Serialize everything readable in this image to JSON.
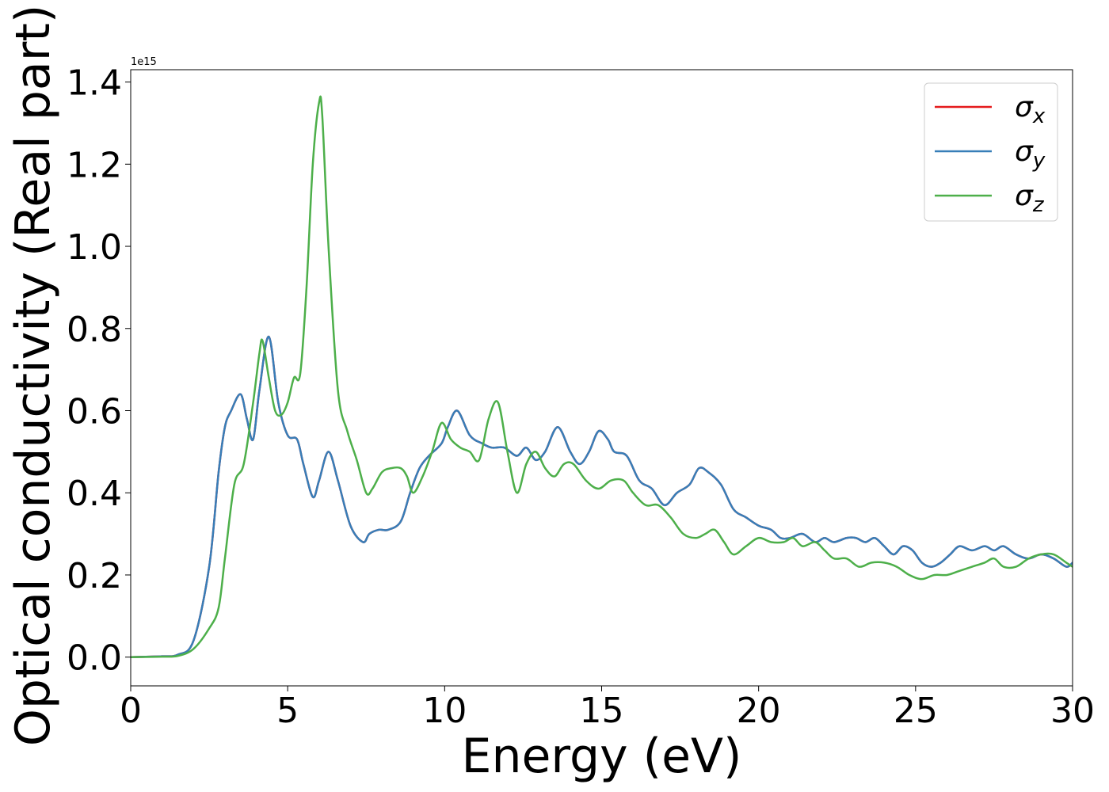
{
  "chart_data": {
    "type": "line",
    "xlabel": "Energy (eV)",
    "ylabel": "Optical conductivity (Real part)",
    "y_offset_label": "1e15",
    "y_scale": 1000000000000000.0,
    "xlim": [
      0,
      30
    ],
    "ylim": [
      -0.07,
      1.43
    ],
    "x_ticks": [
      0,
      5,
      10,
      15,
      20,
      25,
      30
    ],
    "x_tick_labels": [
      "0",
      "5",
      "10",
      "15",
      "20",
      "25",
      "30"
    ],
    "y_ticks": [
      0.0,
      0.2,
      0.4,
      0.6,
      0.8,
      1.0,
      1.2,
      1.4
    ],
    "y_tick_labels": [
      "0.0",
      "0.2",
      "0.4",
      "0.6",
      "0.8",
      "1.0",
      "1.2",
      "1.4"
    ],
    "grid": false,
    "legend_position": "top-right",
    "series": [
      {
        "name": "σx",
        "symbol": "σ",
        "subscript": "x",
        "color": "#e41a1c",
        "x": [
          0,
          1,
          1.5,
          2,
          2.5,
          2.8,
          3,
          3.2,
          3.5,
          3.7,
          3.9,
          4.1,
          4.4,
          4.7,
          5,
          5.3,
          5.5,
          5.8,
          6,
          6.3,
          6.6,
          7,
          7.4,
          7.6,
          7.9,
          8.2,
          8.6,
          8.9,
          9.2,
          9.5,
          9.9,
          10.1,
          10.4,
          10.8,
          11.2,
          11.5,
          11.9,
          12.3,
          12.6,
          12.9,
          13.2,
          13.6,
          14,
          14.3,
          14.6,
          14.9,
          15.2,
          15.4,
          15.8,
          16.2,
          16.6,
          17,
          17.4,
          17.8,
          18.1,
          18.4,
          18.8,
          19.2,
          19.6,
          20,
          20.4,
          20.7,
          21,
          21.4,
          21.8,
          22.1,
          22.4,
          22.8,
          23.1,
          23.4,
          23.7,
          24,
          24.3,
          24.6,
          24.9,
          25.2,
          25.5,
          25.8,
          26.1,
          26.4,
          26.8,
          27.2,
          27.5,
          27.8,
          28.2,
          28.6,
          29,
          29.4,
          29.8,
          30
        ],
        "values": [
          0,
          0.002,
          0.006,
          0.04,
          0.22,
          0.45,
          0.56,
          0.6,
          0.64,
          0.58,
          0.53,
          0.65,
          0.78,
          0.62,
          0.54,
          0.53,
          0.47,
          0.39,
          0.43,
          0.5,
          0.43,
          0.32,
          0.28,
          0.3,
          0.31,
          0.31,
          0.33,
          0.4,
          0.46,
          0.49,
          0.52,
          0.56,
          0.6,
          0.54,
          0.52,
          0.51,
          0.51,
          0.49,
          0.51,
          0.48,
          0.5,
          0.56,
          0.5,
          0.47,
          0.5,
          0.55,
          0.53,
          0.5,
          0.49,
          0.43,
          0.41,
          0.37,
          0.4,
          0.42,
          0.46,
          0.45,
          0.42,
          0.36,
          0.34,
          0.32,
          0.31,
          0.29,
          0.29,
          0.3,
          0.28,
          0.29,
          0.28,
          0.29,
          0.29,
          0.28,
          0.29,
          0.27,
          0.25,
          0.27,
          0.26,
          0.23,
          0.22,
          0.23,
          0.25,
          0.27,
          0.26,
          0.27,
          0.26,
          0.27,
          0.25,
          0.24,
          0.25,
          0.24,
          0.22,
          0.23
        ]
      },
      {
        "name": "σy",
        "symbol": "σ",
        "subscript": "y",
        "color": "#377eb8",
        "x": [
          0,
          1,
          1.5,
          2,
          2.5,
          2.8,
          3,
          3.2,
          3.5,
          3.7,
          3.9,
          4.1,
          4.4,
          4.7,
          5,
          5.3,
          5.5,
          5.8,
          6,
          6.3,
          6.6,
          7,
          7.4,
          7.6,
          7.9,
          8.2,
          8.6,
          8.9,
          9.2,
          9.5,
          9.9,
          10.1,
          10.4,
          10.8,
          11.2,
          11.5,
          11.9,
          12.3,
          12.6,
          12.9,
          13.2,
          13.6,
          14,
          14.3,
          14.6,
          14.9,
          15.2,
          15.4,
          15.8,
          16.2,
          16.6,
          17,
          17.4,
          17.8,
          18.1,
          18.4,
          18.8,
          19.2,
          19.6,
          20,
          20.4,
          20.7,
          21,
          21.4,
          21.8,
          22.1,
          22.4,
          22.8,
          23.1,
          23.4,
          23.7,
          24,
          24.3,
          24.6,
          24.9,
          25.2,
          25.5,
          25.8,
          26.1,
          26.4,
          26.8,
          27.2,
          27.5,
          27.8,
          28.2,
          28.6,
          29,
          29.4,
          29.8,
          30
        ],
        "values": [
          0,
          0.002,
          0.006,
          0.04,
          0.22,
          0.45,
          0.56,
          0.6,
          0.64,
          0.58,
          0.53,
          0.65,
          0.78,
          0.62,
          0.54,
          0.53,
          0.47,
          0.39,
          0.43,
          0.5,
          0.43,
          0.32,
          0.28,
          0.3,
          0.31,
          0.31,
          0.33,
          0.4,
          0.46,
          0.49,
          0.52,
          0.56,
          0.6,
          0.54,
          0.52,
          0.51,
          0.51,
          0.49,
          0.51,
          0.48,
          0.5,
          0.56,
          0.5,
          0.47,
          0.5,
          0.55,
          0.53,
          0.5,
          0.49,
          0.43,
          0.41,
          0.37,
          0.4,
          0.42,
          0.46,
          0.45,
          0.42,
          0.36,
          0.34,
          0.32,
          0.31,
          0.29,
          0.29,
          0.3,
          0.28,
          0.29,
          0.28,
          0.29,
          0.29,
          0.28,
          0.29,
          0.27,
          0.25,
          0.27,
          0.26,
          0.23,
          0.22,
          0.23,
          0.25,
          0.27,
          0.26,
          0.27,
          0.26,
          0.27,
          0.25,
          0.24,
          0.25,
          0.24,
          0.22,
          0.23
        ]
      },
      {
        "name": "σz",
        "symbol": "σ",
        "subscript": "z",
        "color": "#4daf4a",
        "x": [
          0,
          1,
          1.5,
          2,
          2.5,
          2.8,
          3,
          3.3,
          3.6,
          3.9,
          4.1,
          4.2,
          4.4,
          4.6,
          4.8,
          5,
          5.2,
          5.4,
          5.6,
          5.8,
          6,
          6.1,
          6.3,
          6.6,
          6.9,
          7.2,
          7.5,
          7.7,
          8,
          8.3,
          8.6,
          8.8,
          9,
          9.3,
          9.6,
          9.9,
          10.2,
          10.5,
          10.8,
          11.1,
          11.4,
          11.7,
          12,
          12.3,
          12.6,
          12.9,
          13.2,
          13.5,
          13.8,
          14.1,
          14.5,
          14.9,
          15.3,
          15.7,
          16,
          16.4,
          16.8,
          17.2,
          17.6,
          18,
          18.3,
          18.6,
          18.9,
          19.2,
          19.6,
          20,
          20.4,
          20.8,
          21.1,
          21.4,
          21.8,
          22.1,
          22.4,
          22.8,
          23.2,
          23.6,
          24,
          24.4,
          24.8,
          25.2,
          25.6,
          26,
          26.4,
          26.8,
          27.2,
          27.5,
          27.8,
          28.2,
          28.6,
          29,
          29.4,
          29.8,
          30
        ],
        "values": [
          0,
          0.001,
          0.003,
          0.02,
          0.07,
          0.12,
          0.24,
          0.42,
          0.47,
          0.62,
          0.74,
          0.77,
          0.68,
          0.6,
          0.59,
          0.62,
          0.68,
          0.69,
          0.9,
          1.2,
          1.35,
          1.32,
          1.0,
          0.65,
          0.55,
          0.48,
          0.4,
          0.41,
          0.45,
          0.46,
          0.46,
          0.44,
          0.4,
          0.44,
          0.5,
          0.57,
          0.53,
          0.51,
          0.5,
          0.48,
          0.58,
          0.62,
          0.5,
          0.4,
          0.47,
          0.5,
          0.46,
          0.44,
          0.47,
          0.47,
          0.43,
          0.41,
          0.43,
          0.43,
          0.4,
          0.37,
          0.37,
          0.34,
          0.3,
          0.29,
          0.3,
          0.31,
          0.28,
          0.25,
          0.27,
          0.29,
          0.28,
          0.28,
          0.29,
          0.27,
          0.28,
          0.26,
          0.24,
          0.24,
          0.22,
          0.23,
          0.23,
          0.22,
          0.2,
          0.19,
          0.2,
          0.2,
          0.21,
          0.22,
          0.23,
          0.24,
          0.22,
          0.22,
          0.24,
          0.25,
          0.25,
          0.23,
          0.22
        ]
      }
    ]
  }
}
